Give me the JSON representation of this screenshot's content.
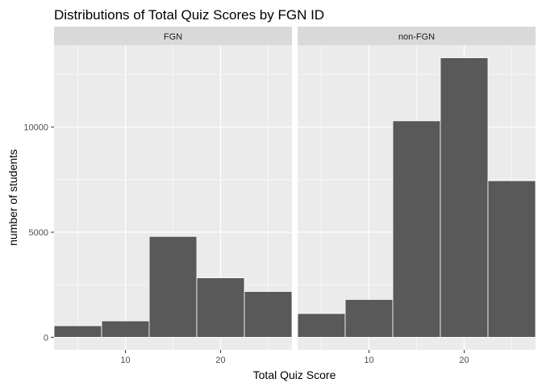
{
  "chart_data": {
    "type": "bar",
    "title": "Distributions of Total Quiz Scores by FGN ID",
    "xlabel": "Total Quiz Score",
    "ylabel": "number of students",
    "xlim": [
      2.5,
      27.5
    ],
    "ylim": [
      -600,
      13900
    ],
    "x_ticks": [
      10,
      20
    ],
    "y_ticks": [
      0,
      5000,
      10000
    ],
    "bins": [
      [
        2.5,
        7.5
      ],
      [
        7.5,
        12.5
      ],
      [
        12.5,
        17.5
      ],
      [
        17.5,
        22.5
      ],
      [
        22.5,
        27.5
      ]
    ],
    "grid": true,
    "panels": [
      {
        "name": "FGN",
        "values": [
          550,
          780,
          4800,
          2830,
          2180
        ]
      },
      {
        "name": "non-FGN",
        "values": [
          1130,
          1800,
          10300,
          13300,
          7450
        ]
      }
    ],
    "colors": {
      "bar_fill": "#595959",
      "bar_stroke": "#ffffff",
      "panel_bg": "#ebebeb",
      "strip_bg": "#d9d9d9",
      "grid": "#ffffff"
    }
  }
}
